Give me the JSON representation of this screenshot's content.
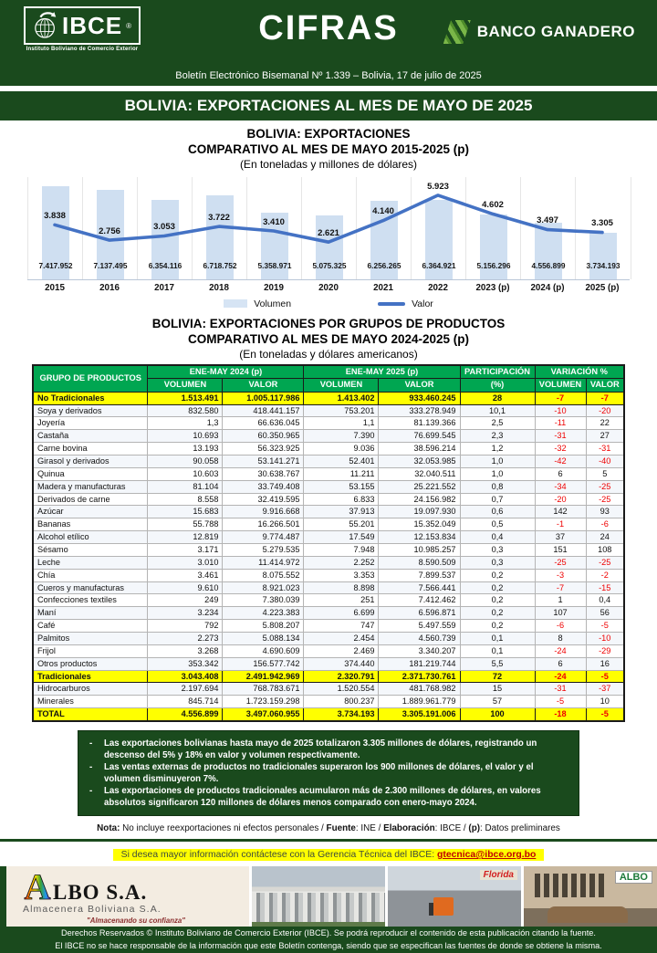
{
  "header": {
    "logo": {
      "name": "IBCE",
      "reg": "®",
      "subtitle": "Instituto Boliviano de Comercio Exterior"
    },
    "title": "CIFRAS",
    "bank": "BANCO GANADERO",
    "bulletin_line": "Boletín Electrónico Bisemanal Nº 1.339 – Bolivia, 17 de julio de 2025"
  },
  "main_title": "BOLIVIA: EXPORTACIONES AL MES DE MAYO DE 2025",
  "chart_data": {
    "type": "bar+line",
    "title": "BOLIVIA: EXPORTACIONES",
    "subtitle": "COMPARATIVO AL MES DE MAYO 2015-2025 (p)",
    "units_note": "(En toneladas y millones de dólares)",
    "categories": [
      "2015",
      "2016",
      "2017",
      "2018",
      "2019",
      "2020",
      "2021",
      "2022",
      "2023 (p)",
      "2024 (p)",
      "2025 (p)"
    ],
    "series": [
      {
        "name": "Volumen",
        "type": "bar",
        "color": "#cfdff1",
        "values": [
          7417952,
          7137495,
          6354116,
          6718752,
          5358971,
          5075325,
          6256265,
          6364921,
          5156296,
          4556899,
          3734193
        ],
        "labels": [
          "7.417.952",
          "7.137.495",
          "6.354.116",
          "6.718.752",
          "5.358.971",
          "5.075.325",
          "6.256.265",
          "6.364.921",
          "5.156.296",
          "4.556.899",
          "3.734.193"
        ]
      },
      {
        "name": "Valor",
        "type": "line",
        "color": "#4472c4",
        "values": [
          3838,
          2756,
          3053,
          3722,
          3410,
          2621,
          4140,
          5923,
          4602,
          3497,
          3305
        ],
        "labels": [
          "3.838",
          "2.756",
          "3.053",
          "3.722",
          "3.410",
          "2.621",
          "4.140",
          "5.923",
          "4.602",
          "3.497",
          "3.305"
        ]
      }
    ],
    "legend_position": "bottom",
    "axis": {
      "bar_max": 8200000,
      "line_max": 7200,
      "gridlines": "vertical-light"
    }
  },
  "table": {
    "title1": "BOLIVIA:  EXPORTACIONES POR GRUPOS DE PRODUCTOS",
    "title2": "COMPARATIVO AL MES DE MAYO 2024-2025 (p)",
    "subtitle": "(En toneladas y dólares americanos)",
    "headers": {
      "product": "GRUPO DE PRODUCTOS",
      "group_2024": "ENE-MAY 2024 (p)",
      "group_2025": "ENE-MAY 2025 (p)",
      "participation": "PARTICIPACIÓN",
      "participation_unit": "(%)",
      "variation": "VARIACIÓN %",
      "volume": "VOLUMEN",
      "value": "VALOR"
    },
    "rows": [
      {
        "name": "No Tradicionales",
        "vol24": "1.513.491",
        "val24": "1.005.117.986",
        "vol25": "1.413.402",
        "val25": "933.460.245",
        "part": "28",
        "var_vol": "-7",
        "var_val": "-7",
        "hl": true
      },
      {
        "name": "Soya y derivados",
        "vol24": "832.580",
        "val24": "418.441.157",
        "vol25": "753.201",
        "val25": "333.278.949",
        "part": "10,1",
        "var_vol": "-10",
        "var_val": "-20"
      },
      {
        "name": "Joyería",
        "vol24": "1,3",
        "val24": "66.636.045",
        "vol25": "1,1",
        "val25": "81.139.366",
        "part": "2,5",
        "var_vol": "-11",
        "var_val": "22"
      },
      {
        "name": "Castaña",
        "vol24": "10.693",
        "val24": "60.350.965",
        "vol25": "7.390",
        "val25": "76.699.545",
        "part": "2,3",
        "var_vol": "-31",
        "var_val": "27"
      },
      {
        "name": "Carne bovina",
        "vol24": "13.193",
        "val24": "56.323.925",
        "vol25": "9.036",
        "val25": "38.596.214",
        "part": "1,2",
        "var_vol": "-32",
        "var_val": "-31"
      },
      {
        "name": "Girasol y derivados",
        "vol24": "90.058",
        "val24": "53.141.271",
        "vol25": "52.401",
        "val25": "32.053.985",
        "part": "1,0",
        "var_vol": "-42",
        "var_val": "-40"
      },
      {
        "name": "Quinua",
        "vol24": "10.603",
        "val24": "30.638.767",
        "vol25": "11.211",
        "val25": "32.040.511",
        "part": "1,0",
        "var_vol": "6",
        "var_val": "5"
      },
      {
        "name": "Madera y manufacturas",
        "vol24": "81.104",
        "val24": "33.749.408",
        "vol25": "53.155",
        "val25": "25.221.552",
        "part": "0,8",
        "var_vol": "-34",
        "var_val": "-25"
      },
      {
        "name": "Derivados de carne",
        "vol24": "8.558",
        "val24": "32.419.595",
        "vol25": "6.833",
        "val25": "24.156.982",
        "part": "0,7",
        "var_vol": "-20",
        "var_val": "-25"
      },
      {
        "name": "Azúcar",
        "vol24": "15.683",
        "val24": "9.916.668",
        "vol25": "37.913",
        "val25": "19.097.930",
        "part": "0,6",
        "var_vol": "142",
        "var_val": "93"
      },
      {
        "name": "Bananas",
        "vol24": "55.788",
        "val24": "16.266.501",
        "vol25": "55.201",
        "val25": "15.352.049",
        "part": "0,5",
        "var_vol": "-1",
        "var_val": "-6"
      },
      {
        "name": "Alcohol etílico",
        "vol24": "12.819",
        "val24": "9.774.487",
        "vol25": "17.549",
        "val25": "12.153.834",
        "part": "0,4",
        "var_vol": "37",
        "var_val": "24"
      },
      {
        "name": "Sésamo",
        "vol24": "3.171",
        "val24": "5.279.535",
        "vol25": "7.948",
        "val25": "10.985.257",
        "part": "0,3",
        "var_vol": "151",
        "var_val": "108"
      },
      {
        "name": "Leche",
        "vol24": "3.010",
        "val24": "11.414.972",
        "vol25": "2.252",
        "val25": "8.590.509",
        "part": "0,3",
        "var_vol": "-25",
        "var_val": "-25"
      },
      {
        "name": "Chía",
        "vol24": "3.461",
        "val24": "8.075.552",
        "vol25": "3.353",
        "val25": "7.899.537",
        "part": "0,2",
        "var_vol": "-3",
        "var_val": "-2"
      },
      {
        "name": "Cueros y manufacturas",
        "vol24": "9.610",
        "val24": "8.921.023",
        "vol25": "8.898",
        "val25": "7.566.441",
        "part": "0,2",
        "var_vol": "-7",
        "var_val": "-15"
      },
      {
        "name": "Confecciones textiles",
        "vol24": "249",
        "val24": "7.380.039",
        "vol25": "251",
        "val25": "7.412.462",
        "part": "0,2",
        "var_vol": "1",
        "var_val": "0,4"
      },
      {
        "name": "Maní",
        "vol24": "3.234",
        "val24": "4.223.383",
        "vol25": "6.699",
        "val25": "6.596.871",
        "part": "0,2",
        "var_vol": "107",
        "var_val": "56"
      },
      {
        "name": "Café",
        "vol24": "792",
        "val24": "5.808.207",
        "vol25": "747",
        "val25": "5.497.559",
        "part": "0,2",
        "var_vol": "-6",
        "var_val": "-5"
      },
      {
        "name": "Palmitos",
        "vol24": "2.273",
        "val24": "5.088.134",
        "vol25": "2.454",
        "val25": "4.560.739",
        "part": "0,1",
        "var_vol": "8",
        "var_val": "-10"
      },
      {
        "name": "Frijol",
        "vol24": "3.268",
        "val24": "4.690.609",
        "vol25": "2.469",
        "val25": "3.340.207",
        "part": "0,1",
        "var_vol": "-24",
        "var_val": "-29"
      },
      {
        "name": "Otros productos",
        "vol24": "353.342",
        "val24": "156.577.742",
        "vol25": "374.440",
        "val25": "181.219.744",
        "part": "5,5",
        "var_vol": "6",
        "var_val": "16"
      },
      {
        "name": "Tradicionales",
        "vol24": "3.043.408",
        "val24": "2.491.942.969",
        "vol25": "2.320.791",
        "val25": "2.371.730.761",
        "part": "72",
        "var_vol": "-24",
        "var_val": "-5",
        "hl": true
      },
      {
        "name": "Hidrocarburos",
        "vol24": "2.197.694",
        "val24": "768.783.671",
        "vol25": "1.520.554",
        "val25": "481.768.982",
        "part": "15",
        "var_vol": "-31",
        "var_val": "-37"
      },
      {
        "name": "Minerales",
        "vol24": "845.714",
        "val24": "1.723.159.298",
        "vol25": "800.237",
        "val25": "1.889.961.779",
        "part": "57",
        "var_vol": "-5",
        "var_val": "10"
      },
      {
        "name": "TOTAL",
        "vol24": "4.556.899",
        "val24": "3.497.060.955",
        "vol25": "3.734.193",
        "val25": "3.305.191.006",
        "part": "100",
        "var_vol": "-18",
        "var_val": "-5",
        "hl": true
      }
    ]
  },
  "notes": [
    "Las exportaciones bolivianas hasta mayo de 2025 totalizaron 3.305 millones de dólares, registrando un descenso del 5% y 18% en valor y volumen respectivamente.",
    "Las ventas externas de productos no tradicionales superaron los 900 millones de dólares, el valor y el volumen disminuyeron 7%.",
    "Las exportaciones de productos tradicionales acumularon más de 2.300 millones de dólares, en valores absolutos significaron 120 millones de dólares menos comparado con enero-mayo 2024."
  ],
  "nota_parts": [
    {
      "t": "Nota:",
      "b": true
    },
    {
      "t": " No incluye reexportaciones ni efectos personales / "
    },
    {
      "t": "Fuente",
      "b": true
    },
    {
      "t": ": INE / "
    },
    {
      "t": "Elaboración",
      "b": true
    },
    {
      "t": ": IBCE / "
    },
    {
      "t": "(p)",
      "b": true
    },
    {
      "t": ": Datos preliminares"
    }
  ],
  "contact": {
    "text": "Si desea mayor información contáctese con la Gerencia Técnica del IBCE: ",
    "email": "gtecnica@ibce.org.bo"
  },
  "ad": {
    "brand_initial": "A",
    "brand_rest": "LBO S.A.",
    "subtitle": "Almacenera Boliviana S.A.",
    "slogan": "\"Almacenando su confianza\"",
    "photo_label_florida": "Florida",
    "photo_label_albo": "ALBO"
  },
  "footer": {
    "line1": "Derechos Reservados © Instituto Boliviano de Comercio Exterior (IBCE). Se podrá reproducir el contenido de esta publicación citando la fuente.",
    "line2": "El IBCE no se hace responsable de la información que este Boletín contenga, siendo que se especifican las fuentes de donde se obtiene la misma."
  }
}
